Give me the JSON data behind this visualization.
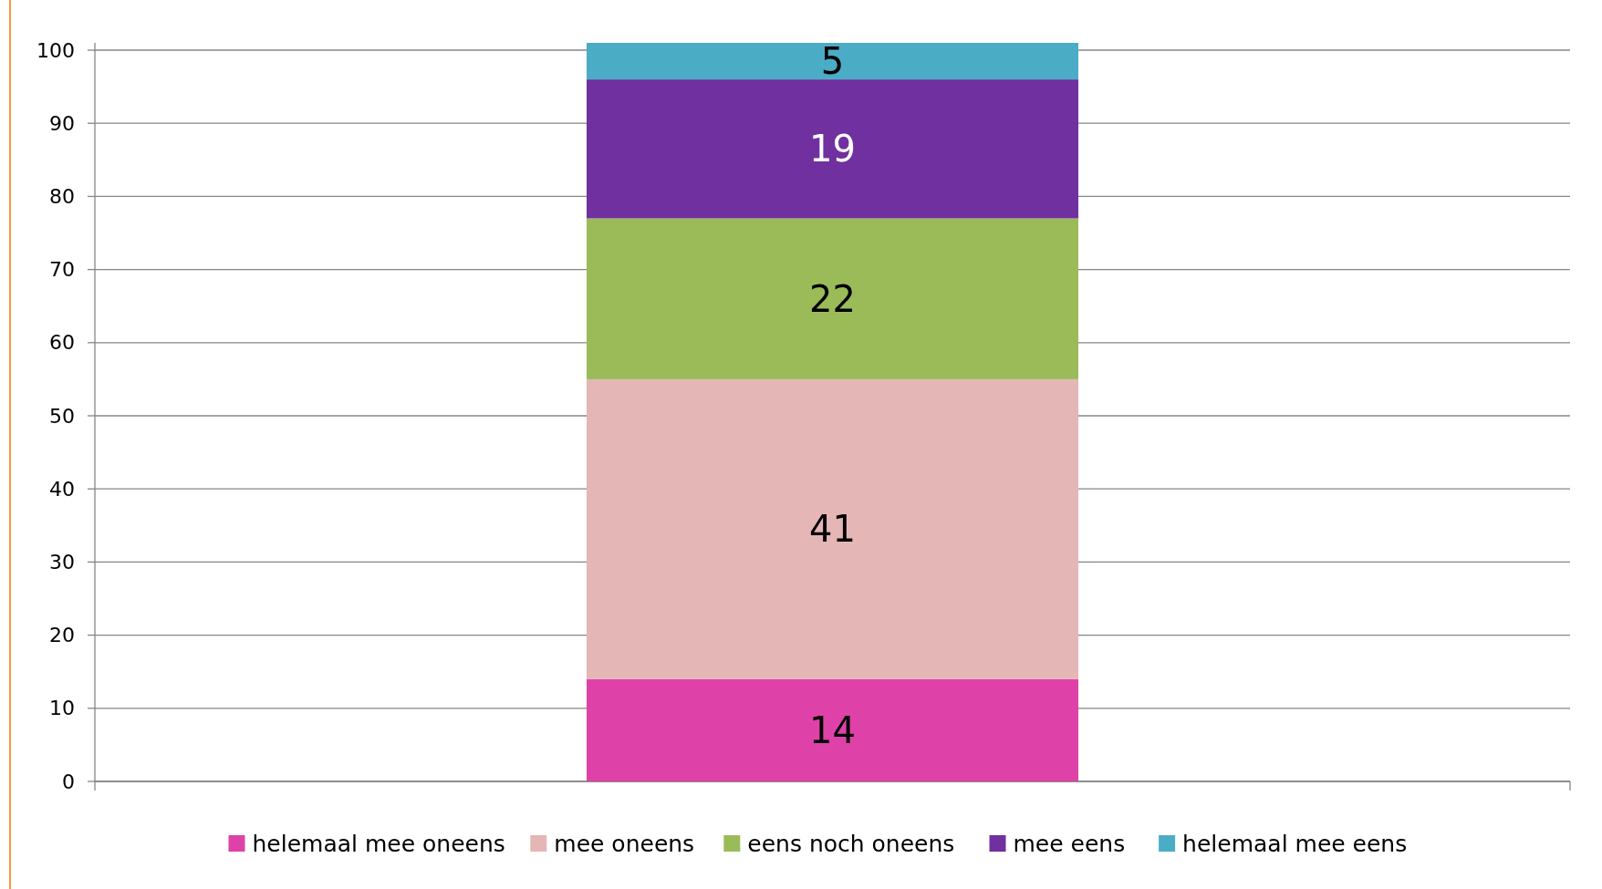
{
  "chart_data": {
    "type": "bar",
    "stacked": true,
    "categories": [
      null
    ],
    "series": [
      {
        "name": "helemaal mee oneens",
        "color": "#de42a8",
        "values": [
          14
        ]
      },
      {
        "name": "mee oneens",
        "color": "#e5b6b6",
        "values": [
          41
        ]
      },
      {
        "name": "eens noch oneens",
        "color": "#9bbb59",
        "values": [
          22
        ]
      },
      {
        "name": "mee eens",
        "color": "#7030a0",
        "values": [
          19
        ]
      },
      {
        "name": "helemaal mee eens",
        "color": "#4bacc6",
        "values": [
          5
        ]
      }
    ],
    "ylim": [
      0,
      101
    ],
    "yticks": [
      0,
      10,
      20,
      30,
      40,
      50,
      60,
      70,
      80,
      90,
      100
    ],
    "grid": "y",
    "legend": "bottom",
    "data_labels": true
  }
}
